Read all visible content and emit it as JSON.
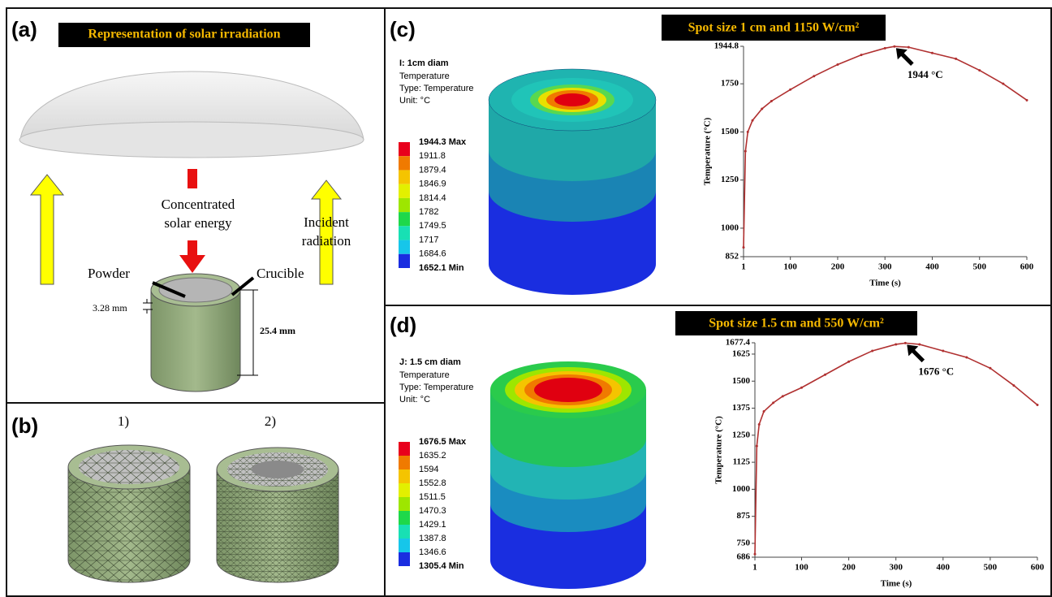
{
  "panels": {
    "a": {
      "label": "(a)",
      "title": "Representation of solar irradiation",
      "concentrated": [
        "Concentrated",
        "solar energy"
      ],
      "incident": [
        "Incident",
        "radiation"
      ],
      "powder": "Powder",
      "crucible": "Crucible",
      "thickness": "3.28 mm",
      "height": "25.4 mm"
    },
    "b": {
      "label": "(b)",
      "mesh_labels": [
        "1)",
        "2)"
      ]
    },
    "c": {
      "label": "(c)",
      "contour": {
        "title": "I: 1cm diam",
        "lines": [
          "Temperature",
          "Type: Temperature",
          "Unit: °C"
        ],
        "scale": [
          "1944.3 Max",
          "1911.8",
          "1879.4",
          "1846.9",
          "1814.4",
          "1782",
          "1749.5",
          "1717",
          "1684.6",
          "1652.1 Min"
        ],
        "colors": [
          "#e8001c",
          "#f07a00",
          "#f5c400",
          "#e3f000",
          "#9ee600",
          "#1ed84a",
          "#18e0b4",
          "#16c6ea",
          "#1a2de0"
        ]
      }
    },
    "d": {
      "label": "(d)",
      "contour": {
        "title": "J: 1.5 cm diam",
        "lines": [
          "Temperature",
          "Type: Temperature",
          "Unit: °C"
        ],
        "scale": [
          "1676.5 Max",
          "1635.2",
          "1594",
          "1552.8",
          "1511.5",
          "1470.3",
          "1429.1",
          "1387.8",
          "1346.6",
          "1305.4 Min"
        ],
        "colors": [
          "#e8001c",
          "#f07a00",
          "#f5c400",
          "#e3f000",
          "#9ee600",
          "#1ed84a",
          "#18e0b4",
          "#16c6ea",
          "#1a2de0"
        ]
      }
    }
  },
  "chart_data": [
    {
      "type": "line",
      "title": "Spot size 1 cm and 1150 W/cm²",
      "x_label": "Time (s)",
      "y_label": "Temperature (°C)",
      "x": [
        1,
        5,
        10,
        20,
        40,
        60,
        100,
        150,
        200,
        250,
        300,
        320,
        350,
        400,
        450,
        500,
        550,
        600
      ],
      "series": [
        {
          "color": "#b03030",
          "values": [
            900,
            1400,
            1500,
            1560,
            1620,
            1660,
            1720,
            1790,
            1850,
            1900,
            1935,
            1944,
            1940,
            1910,
            1880,
            1820,
            1750,
            1665
          ]
        }
      ],
      "xlim": [
        1,
        600
      ],
      "xticks": [
        1,
        100,
        200,
        300,
        400,
        500,
        600
      ],
      "ylim": [
        852,
        1944.8
      ],
      "yticks": [
        852,
        1000,
        1250,
        1500,
        1750,
        1944.8
      ],
      "annotation": {
        "text": "1944 °C",
        "x": 320,
        "y": 1944
      }
    },
    {
      "type": "line",
      "title": "Spot size 1.5 cm and 550 W/cm²",
      "x_label": "Time (s)",
      "y_label": "Temperature (°C)",
      "x": [
        1,
        5,
        10,
        20,
        40,
        60,
        100,
        150,
        200,
        250,
        300,
        320,
        350,
        400,
        450,
        500,
        550,
        600
      ],
      "series": [
        {
          "color": "#b03030",
          "values": [
            700,
            1200,
            1300,
            1360,
            1400,
            1430,
            1470,
            1530,
            1590,
            1640,
            1670,
            1676,
            1670,
            1640,
            1610,
            1560,
            1480,
            1390
          ]
        }
      ],
      "xlim": [
        1,
        600
      ],
      "xticks": [
        1,
        100,
        200,
        300,
        400,
        500,
        600
      ],
      "ylim": [
        686,
        1677.4
      ],
      "yticks": [
        686,
        750,
        875,
        1000,
        1125,
        1250,
        1375,
        1500,
        1625,
        1677.4
      ],
      "annotation": {
        "text": "1676 °C",
        "x": 320,
        "y": 1676
      }
    }
  ]
}
